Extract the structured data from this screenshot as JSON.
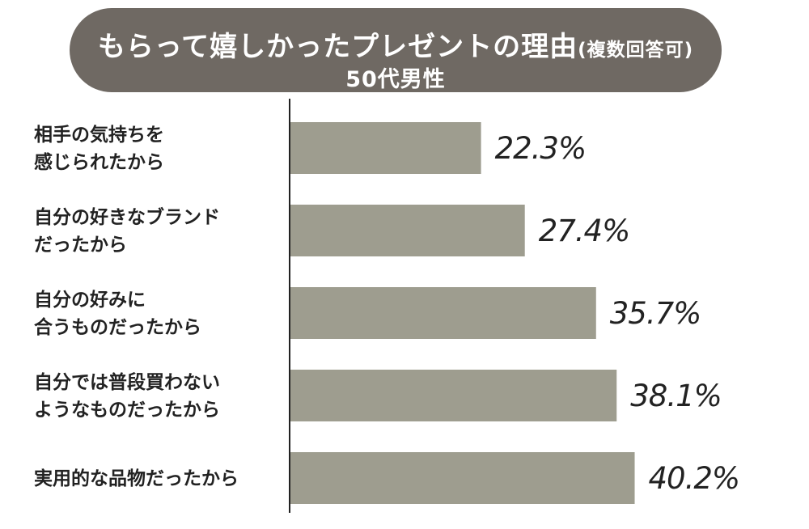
{
  "chart_data": {
    "type": "bar",
    "orientation": "horizontal",
    "title": "もらって嬉しかったプレゼントの理由",
    "title_suffix": "(複数回答可)",
    "subtitle": "50代男性",
    "categories": [
      [
        "相手の気持ちを",
        "感じられたから"
      ],
      [
        "自分の好きなブランド",
        "だったから"
      ],
      [
        "自分の好みに",
        "合うものだったから"
      ],
      [
        "自分では普段買わない",
        "ようなものだったから"
      ],
      [
        "実用的な品物だったから"
      ]
    ],
    "values": [
      22.3,
      27.4,
      35.7,
      38.1,
      40.2
    ],
    "value_labels": [
      "22.3%",
      "27.4%",
      "35.7%",
      "38.1%",
      "40.2%"
    ],
    "xlim": [
      0,
      50
    ],
    "grid": false,
    "legend": "none",
    "colors": {
      "bar": "#9e9d8f",
      "title_bg": "#6f6963",
      "axis": "#222222",
      "title_text": "#ffffff"
    }
  }
}
